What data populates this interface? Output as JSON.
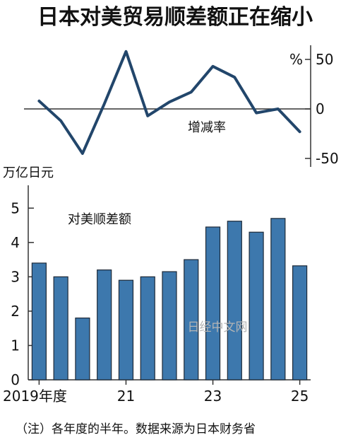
{
  "title": "日本对美贸易顺差额正在缩小",
  "note": "（注）各年度的半年。数据来源为日本财务省",
  "watermark": "日经中文网",
  "colors": {
    "bar": "#3d78ad",
    "bar_border": "#1e2a38",
    "line": "#22466b",
    "axis": "#333333"
  },
  "chart_data": [
    {
      "type": "line",
      "series": [
        {
          "name": "增减率",
          "values": [
            8,
            -12,
            -45,
            5,
            58,
            -7,
            7,
            17,
            43,
            32,
            -4,
            0,
            -23
          ]
        }
      ],
      "y_unit": "%",
      "ylim": [
        -50,
        50
      ],
      "yticks": [
        "50",
        "0",
        "-50"
      ],
      "grid": false,
      "zero_line": true
    },
    {
      "type": "bar",
      "unit": "万亿日元",
      "series": [
        {
          "name": "对美顺差额",
          "values": [
            3.4,
            3.0,
            1.8,
            3.2,
            2.9,
            3.0,
            3.15,
            3.5,
            4.45,
            4.62,
            4.3,
            4.7,
            3.32
          ]
        }
      ],
      "ylim": [
        0,
        5.5
      ],
      "yticks": [
        "0",
        "1",
        "2",
        "3",
        "4",
        "5"
      ],
      "xticks": [
        {
          "label": "2019年度",
          "index": 0
        },
        {
          "label": "21",
          "index": 4
        },
        {
          "label": "23",
          "index": 8
        },
        {
          "label": "25",
          "index": 12
        }
      ],
      "grid": false
    }
  ]
}
